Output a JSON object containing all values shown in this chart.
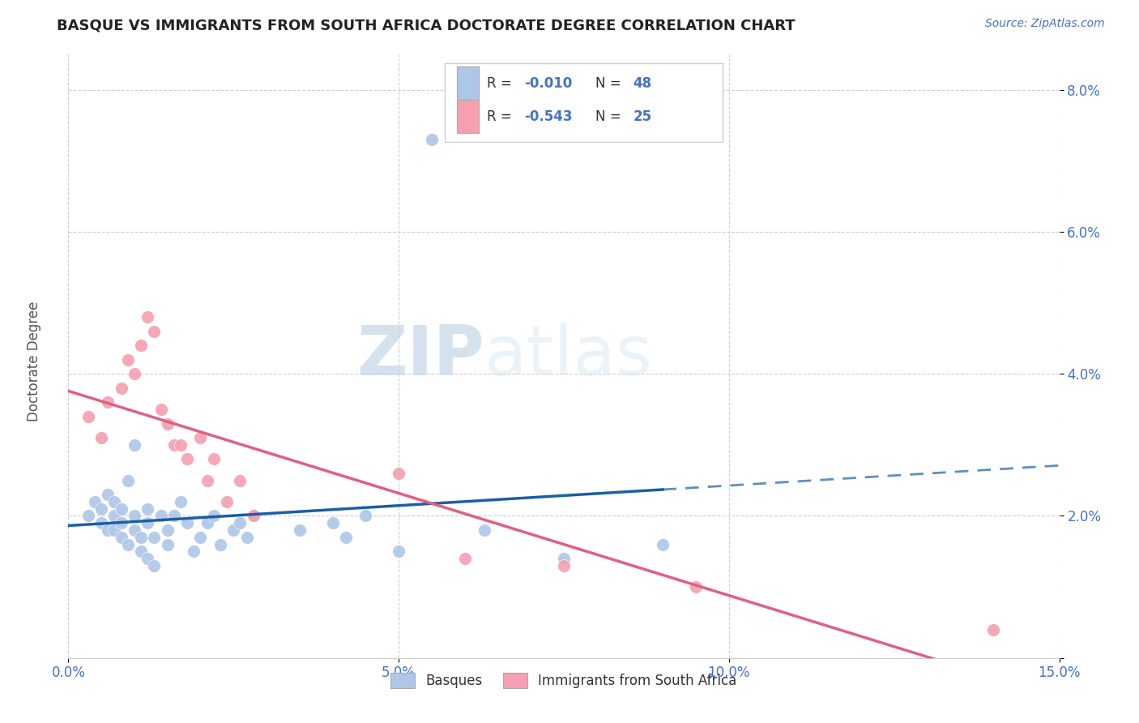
{
  "title": "BASQUE VS IMMIGRANTS FROM SOUTH AFRICA DOCTORATE DEGREE CORRELATION CHART",
  "source_text": "Source: ZipAtlas.com",
  "ylabel": "Doctorate Degree",
  "xlim": [
    0.0,
    0.15
  ],
  "ylim": [
    0.0,
    0.085
  ],
  "xticks": [
    0.0,
    0.05,
    0.1,
    0.15
  ],
  "yticks": [
    0.0,
    0.02,
    0.04,
    0.06,
    0.08
  ],
  "basque_color": "#aec6e8",
  "south_africa_color": "#f4a0b0",
  "basque_line_color": "#1a5fa8",
  "south_africa_line_color": "#e06080",
  "text_color": "#4472c4",
  "watermark_zip": "ZIP",
  "watermark_atlas": "atlas",
  "basque_x": [
    0.003,
    0.004,
    0.005,
    0.005,
    0.006,
    0.006,
    0.007,
    0.007,
    0.007,
    0.008,
    0.008,
    0.008,
    0.009,
    0.009,
    0.01,
    0.01,
    0.01,
    0.011,
    0.011,
    0.012,
    0.012,
    0.012,
    0.013,
    0.013,
    0.014,
    0.015,
    0.015,
    0.016,
    0.017,
    0.018,
    0.019,
    0.02,
    0.021,
    0.022,
    0.023,
    0.025,
    0.026,
    0.027,
    0.028,
    0.035,
    0.04,
    0.042,
    0.045,
    0.05,
    0.055,
    0.063,
    0.075,
    0.09
  ],
  "basque_y": [
    0.02,
    0.022,
    0.019,
    0.021,
    0.018,
    0.023,
    0.018,
    0.02,
    0.022,
    0.017,
    0.019,
    0.021,
    0.016,
    0.025,
    0.018,
    0.02,
    0.03,
    0.015,
    0.017,
    0.019,
    0.021,
    0.014,
    0.013,
    0.017,
    0.02,
    0.016,
    0.018,
    0.02,
    0.022,
    0.019,
    0.015,
    0.017,
    0.019,
    0.02,
    0.016,
    0.018,
    0.019,
    0.017,
    0.02,
    0.018,
    0.019,
    0.017,
    0.02,
    0.015,
    0.073,
    0.018,
    0.014,
    0.016
  ],
  "south_africa_x": [
    0.003,
    0.005,
    0.006,
    0.008,
    0.009,
    0.01,
    0.011,
    0.012,
    0.013,
    0.014,
    0.015,
    0.016,
    0.017,
    0.018,
    0.02,
    0.021,
    0.022,
    0.024,
    0.026,
    0.028,
    0.05,
    0.06,
    0.075,
    0.095,
    0.14
  ],
  "south_africa_y": [
    0.034,
    0.031,
    0.036,
    0.038,
    0.042,
    0.04,
    0.044,
    0.048,
    0.046,
    0.035,
    0.033,
    0.03,
    0.03,
    0.028,
    0.031,
    0.025,
    0.028,
    0.022,
    0.025,
    0.02,
    0.026,
    0.014,
    0.013,
    0.01,
    0.004
  ],
  "basque_line_solid_end": 0.09,
  "basque_line_dash_start": 0.09
}
